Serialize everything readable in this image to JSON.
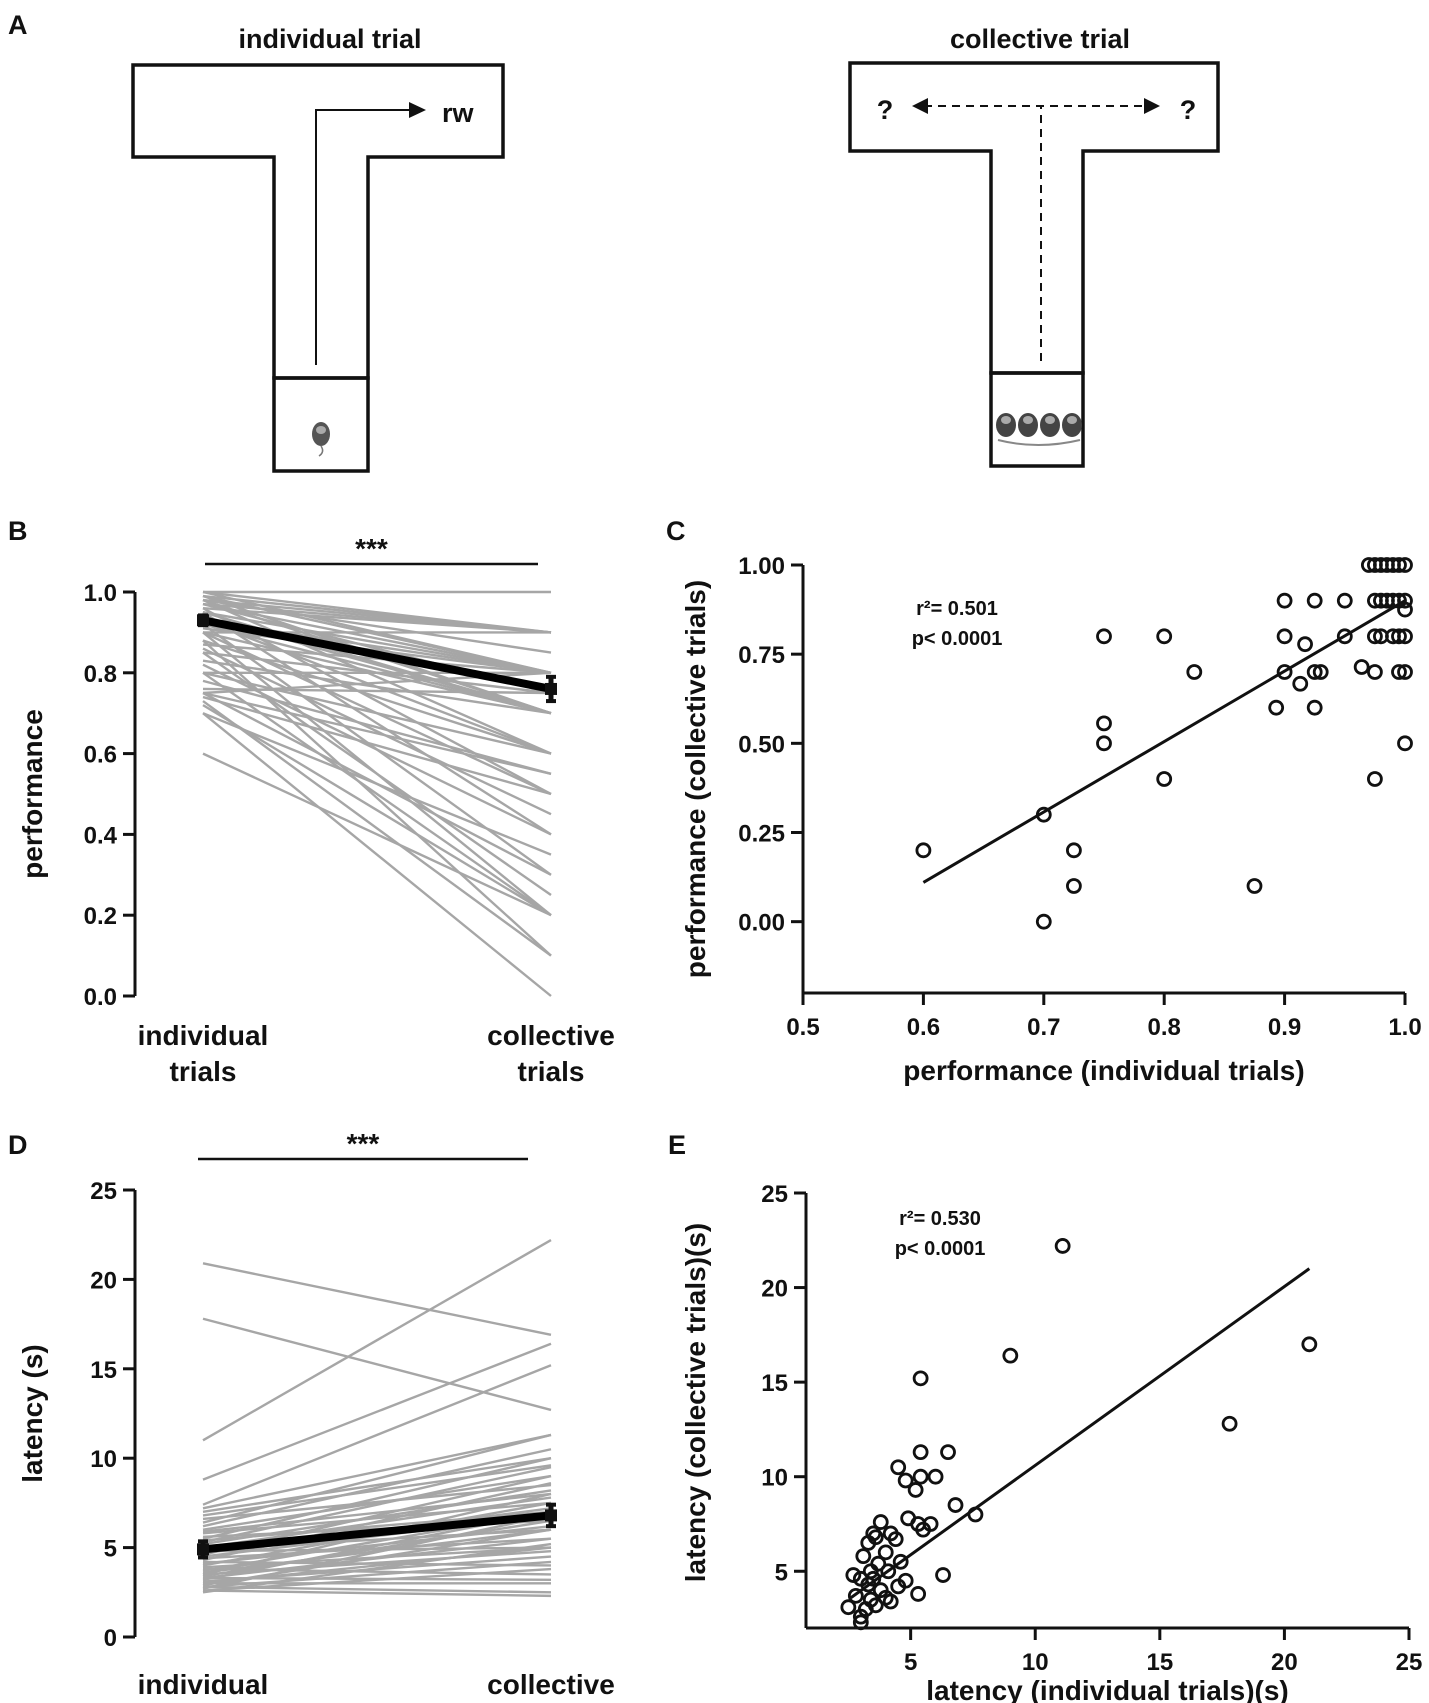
{
  "panels": {
    "a": {
      "letter": "A",
      "individual_title": "individual trial",
      "collective_title": "collective trial",
      "reward_label": "rw",
      "unknown_left": "?",
      "unknown_right": "?"
    },
    "b": {
      "letter": "B"
    },
    "c": {
      "letter": "C"
    },
    "d": {
      "letter": "D"
    },
    "e": {
      "letter": "E"
    }
  },
  "chart_data": [
    {
      "id": "B",
      "type": "line",
      "ylabel": "performance",
      "categories": [
        "individual\ntrials",
        "collective\ntrials"
      ],
      "ylim": [
        0,
        1.0
      ],
      "yticks": [
        "0.0",
        "0.2",
        "0.4",
        "0.6",
        "0.8",
        "1.0"
      ],
      "significance": "***",
      "mean": [
        0.93,
        0.76
      ],
      "sem": [
        0.012,
        0.03
      ],
      "mean_color": "#000000",
      "pair_color": "#a6a6a6",
      "pairs": [
        [
          1.0,
          1.0
        ],
        [
          1.0,
          0.9
        ],
        [
          1.0,
          0.8
        ],
        [
          0.99,
          0.9
        ],
        [
          0.99,
          0.8
        ],
        [
          0.99,
          0.7
        ],
        [
          0.98,
          0.9
        ],
        [
          0.98,
          0.85
        ],
        [
          0.98,
          0.7
        ],
        [
          0.98,
          0.6
        ],
        [
          0.97,
          0.9
        ],
        [
          0.97,
          0.8
        ],
        [
          0.97,
          0.75
        ],
        [
          0.96,
          0.9
        ],
        [
          0.96,
          0.5
        ],
        [
          0.95,
          0.8
        ],
        [
          0.95,
          0.4
        ],
        [
          0.95,
          0.7
        ],
        [
          0.94,
          0.7
        ],
        [
          0.93,
          0.8
        ],
        [
          0.93,
          0.6
        ],
        [
          0.92,
          0.3
        ],
        [
          0.92,
          0.7
        ],
        [
          0.91,
          0.8
        ],
        [
          0.9,
          0.9
        ],
        [
          0.9,
          0.7
        ],
        [
          0.9,
          0.5
        ],
        [
          0.9,
          0.2
        ],
        [
          0.88,
          0.6
        ],
        [
          0.88,
          0.1
        ],
        [
          0.87,
          0.8
        ],
        [
          0.86,
          0.45
        ],
        [
          0.85,
          0.75
        ],
        [
          0.85,
          0.25
        ],
        [
          0.83,
          0.7
        ],
        [
          0.82,
          0.4
        ],
        [
          0.8,
          0.8
        ],
        [
          0.8,
          0.6
        ],
        [
          0.8,
          0.2
        ],
        [
          0.78,
          0.55
        ],
        [
          0.76,
          0.75
        ],
        [
          0.75,
          0.8
        ],
        [
          0.75,
          0.55
        ],
        [
          0.75,
          0.3
        ],
        [
          0.74,
          0.5
        ],
        [
          0.73,
          0.1
        ],
        [
          0.72,
          0.2
        ],
        [
          0.7,
          0.35
        ],
        [
          0.7,
          0.0
        ],
        [
          0.6,
          0.2
        ]
      ]
    },
    {
      "id": "C",
      "type": "scatter",
      "xlabel": "performance (individual trials)",
      "ylabel": "performance (collective trials)",
      "xlim": [
        0.5,
        1.0
      ],
      "ylim": [
        -0.2,
        1.0
      ],
      "xticks": [
        "0.5",
        "0.6",
        "0.7",
        "0.8",
        "0.9",
        "1.0"
      ],
      "yticks": [
        "0.00",
        "0.25",
        "0.50",
        "0.75",
        "1.00"
      ],
      "stat_r2": "r²= 0.501",
      "stat_p": "p< 0.0001",
      "fit": [
        [
          0.6,
          0.11
        ],
        [
          1.0,
          0.9
        ]
      ],
      "points": [
        [
          0.6,
          0.2
        ],
        [
          0.7,
          0.3
        ],
        [
          0.7,
          0.0
        ],
        [
          0.725,
          0.2
        ],
        [
          0.725,
          0.1
        ],
        [
          0.75,
          0.8
        ],
        [
          0.75,
          0.556
        ],
        [
          0.75,
          0.5
        ],
        [
          0.8,
          0.8
        ],
        [
          0.8,
          0.4
        ],
        [
          0.825,
          0.7
        ],
        [
          0.875,
          0.1
        ],
        [
          0.893,
          0.6
        ],
        [
          0.9,
          0.9
        ],
        [
          0.9,
          0.8
        ],
        [
          0.9,
          0.7
        ],
        [
          0.913,
          0.667
        ],
        [
          0.917,
          0.778
        ],
        [
          0.925,
          0.9
        ],
        [
          0.925,
          0.7
        ],
        [
          0.925,
          0.6
        ],
        [
          0.93,
          0.7
        ],
        [
          0.95,
          0.9
        ],
        [
          0.95,
          0.8
        ],
        [
          0.964,
          0.714
        ],
        [
          0.97,
          1.0
        ],
        [
          0.975,
          1.0
        ],
        [
          0.98,
          1.0
        ],
        [
          0.985,
          1.0
        ],
        [
          0.99,
          1.0
        ],
        [
          0.995,
          1.0
        ],
        [
          1.0,
          1.0
        ],
        [
          0.975,
          0.9
        ],
        [
          0.98,
          0.9
        ],
        [
          0.985,
          0.9
        ],
        [
          0.99,
          0.9
        ],
        [
          0.995,
          0.9
        ],
        [
          1.0,
          0.9
        ],
        [
          1.0,
          0.875
        ],
        [
          0.975,
          0.8
        ],
        [
          0.98,
          0.8
        ],
        [
          0.99,
          0.8
        ],
        [
          0.995,
          0.8
        ],
        [
          1.0,
          0.8
        ],
        [
          0.975,
          0.7
        ],
        [
          0.995,
          0.7
        ],
        [
          1.0,
          0.7
        ],
        [
          0.975,
          0.4
        ],
        [
          1.0,
          0.5
        ]
      ]
    },
    {
      "id": "D",
      "type": "line",
      "ylabel": "latency (s)",
      "categories": [
        "individual\ntrials",
        "collective\ntrials"
      ],
      "ylim": [
        0,
        25
      ],
      "yticks": [
        "0",
        "5",
        "10",
        "15",
        "20",
        "25"
      ],
      "significance": "***",
      "mean": [
        4.9,
        6.8
      ],
      "sem": [
        0.45,
        0.6
      ],
      "mean_color": "#000000",
      "pair_color": "#a6a6a6",
      "pairs": [
        [
          20.9,
          16.9
        ],
        [
          17.8,
          12.7
        ],
        [
          11.0,
          22.2
        ],
        [
          8.8,
          16.4
        ],
        [
          7.4,
          15.2
        ],
        [
          7.2,
          11.3
        ],
        [
          7.0,
          10.0
        ],
        [
          6.8,
          9.6
        ],
        [
          6.6,
          8.5
        ],
        [
          6.4,
          11.3
        ],
        [
          6.2,
          10.5
        ],
        [
          6.0,
          9.0
        ],
        [
          5.9,
          8.0
        ],
        [
          5.8,
          7.5
        ],
        [
          5.6,
          6.5
        ],
        [
          5.5,
          10.0
        ],
        [
          5.4,
          7.0
        ],
        [
          5.3,
          9.5
        ],
        [
          5.2,
          8.2
        ],
        [
          5.0,
          7.8
        ],
        [
          4.9,
          6.0
        ],
        [
          4.8,
          5.0
        ],
        [
          4.7,
          7.2
        ],
        [
          4.6,
          9.0
        ],
        [
          4.5,
          6.8
        ],
        [
          4.4,
          5.5
        ],
        [
          4.3,
          8.6
        ],
        [
          4.2,
          4.0
        ],
        [
          4.1,
          6.2
        ],
        [
          4.0,
          7.5
        ],
        [
          3.9,
          5.0
        ],
        [
          3.8,
          3.5
        ],
        [
          3.7,
          7.0
        ],
        [
          3.6,
          6.0
        ],
        [
          3.5,
          4.8
        ],
        [
          3.5,
          8.0
        ],
        [
          3.4,
          6.5
        ],
        [
          3.3,
          3.2
        ],
        [
          3.3,
          5.5
        ],
        [
          3.2,
          7.0
        ],
        [
          3.1,
          4.5
        ],
        [
          3.0,
          5.0
        ],
        [
          3.0,
          3.0
        ],
        [
          2.9,
          6.0
        ],
        [
          2.8,
          2.5
        ],
        [
          2.8,
          4.2
        ],
        [
          2.7,
          6.8
        ],
        [
          2.6,
          3.8
        ],
        [
          2.6,
          2.3
        ],
        [
          2.5,
          5.2
        ]
      ]
    },
    {
      "id": "E",
      "type": "scatter",
      "xlabel": "latency (individual trials)(s)",
      "ylabel": "latency (collective trials)(s)",
      "xlim": [
        0.8,
        25
      ],
      "ylim": [
        2,
        25
      ],
      "xticks": [
        "5",
        "10",
        "15",
        "20",
        "25"
      ],
      "xtick_values": [
        5,
        10,
        15,
        20,
        25
      ],
      "yticks": [
        "5",
        "10",
        "15",
        "20",
        "25"
      ],
      "ytick_values": [
        5,
        10,
        15,
        20,
        25
      ],
      "stat_r2": "r²= 0.530",
      "stat_p": "p< 0.0001",
      "fit": [
        [
          2.6,
          3.6
        ],
        [
          21.0,
          21.0
        ]
      ],
      "points": [
        [
          11.1,
          22.2
        ],
        [
          21.0,
          17.0
        ],
        [
          9.0,
          16.4
        ],
        [
          5.4,
          15.2
        ],
        [
          17.8,
          12.8
        ],
        [
          5.4,
          11.3
        ],
        [
          6.5,
          11.3
        ],
        [
          4.5,
          10.5
        ],
        [
          5.4,
          10.0
        ],
        [
          6.0,
          10.0
        ],
        [
          4.8,
          9.8
        ],
        [
          5.2,
          9.3
        ],
        [
          6.8,
          8.5
        ],
        [
          7.6,
          8.0
        ],
        [
          4.9,
          7.8
        ],
        [
          5.3,
          7.5
        ],
        [
          5.8,
          7.5
        ],
        [
          3.8,
          7.6
        ],
        [
          3.5,
          7.0
        ],
        [
          4.2,
          7.0
        ],
        [
          5.5,
          7.2
        ],
        [
          3.6,
          6.8
        ],
        [
          4.4,
          6.7
        ],
        [
          3.3,
          6.5
        ],
        [
          4.0,
          6.0
        ],
        [
          3.1,
          5.8
        ],
        [
          4.6,
          5.5
        ],
        [
          3.7,
          5.4
        ],
        [
          2.7,
          4.8
        ],
        [
          3.4,
          5.0
        ],
        [
          4.1,
          5.0
        ],
        [
          6.3,
          4.8
        ],
        [
          3.0,
          4.6
        ],
        [
          3.5,
          4.6
        ],
        [
          4.8,
          4.5
        ],
        [
          3.3,
          4.3
        ],
        [
          4.5,
          4.2
        ],
        [
          3.8,
          4.0
        ],
        [
          5.3,
          3.8
        ],
        [
          2.8,
          3.7
        ],
        [
          3.4,
          3.5
        ],
        [
          4.2,
          3.4
        ],
        [
          2.5,
          3.1
        ],
        [
          3.2,
          3.0
        ],
        [
          3.6,
          3.2
        ],
        [
          4.0,
          3.6
        ],
        [
          3.0,
          2.6
        ],
        [
          3.0,
          2.3
        ]
      ]
    }
  ]
}
